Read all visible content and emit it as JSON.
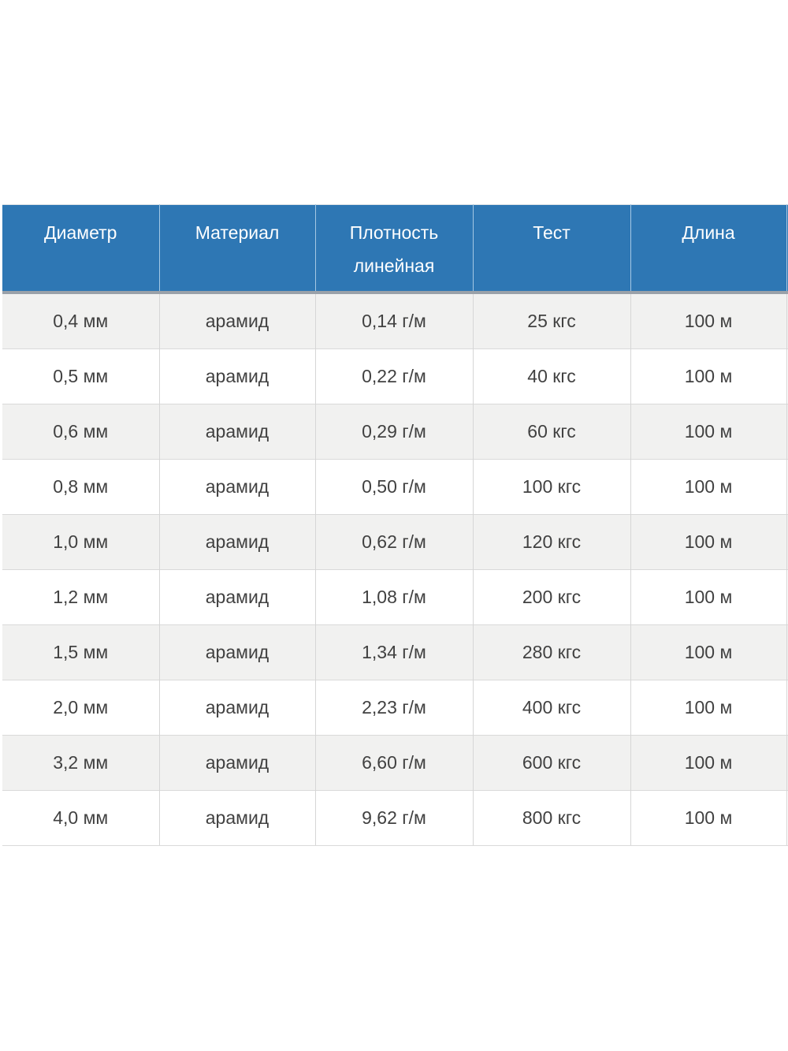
{
  "table": {
    "columns": [
      {
        "key": "diameter",
        "label": "Диаметр"
      },
      {
        "key": "material",
        "label": "Материал"
      },
      {
        "key": "density",
        "label": "Плотность линейная"
      },
      {
        "key": "test",
        "label": "Тест"
      },
      {
        "key": "length",
        "label": "Длина"
      }
    ],
    "rows": [
      [
        "0,4 мм",
        "арамид",
        "0,14 г/м",
        "25 кгс",
        "100 м"
      ],
      [
        "0,5 мм",
        "арамид",
        "0,22 г/м",
        "40 кгс",
        "100 м"
      ],
      [
        "0,6 мм",
        "арамид",
        "0,29 г/м",
        "60 кгс",
        "100 м"
      ],
      [
        "0,8 мм",
        "арамид",
        "0,50 г/м",
        "100 кгс",
        "100 м"
      ],
      [
        "1,0 мм",
        "арамид",
        "0,62 г/м",
        "120 кгс",
        "100 м"
      ],
      [
        "1,2 мм",
        "арамид",
        "1,08 г/м",
        "200 кгс",
        "100 м"
      ],
      [
        "1,5 мм",
        "арамид",
        "1,34 г/м",
        "280 кгс",
        "100 м"
      ],
      [
        "2,0 мм",
        "арамид",
        "2,23 г/м",
        "400 кгс",
        "100 м"
      ],
      [
        "3,2 мм",
        "арамид",
        "6,60 г/м",
        "600 кгс",
        "100 м"
      ],
      [
        "4,0 мм",
        "арамид",
        "9,62 г/м",
        "800 кгс",
        "100 м"
      ]
    ],
    "colors": {
      "header_background": "#2e77b4",
      "header_text": "#ffffff",
      "header_separator": "#a5c8e4",
      "header_bottom_line": "#9aa1a9",
      "row_striped": "#f1f1f0",
      "row_plain": "#ffffff",
      "cell_border": "#d9d9d9",
      "body_text": "#414141"
    }
  }
}
